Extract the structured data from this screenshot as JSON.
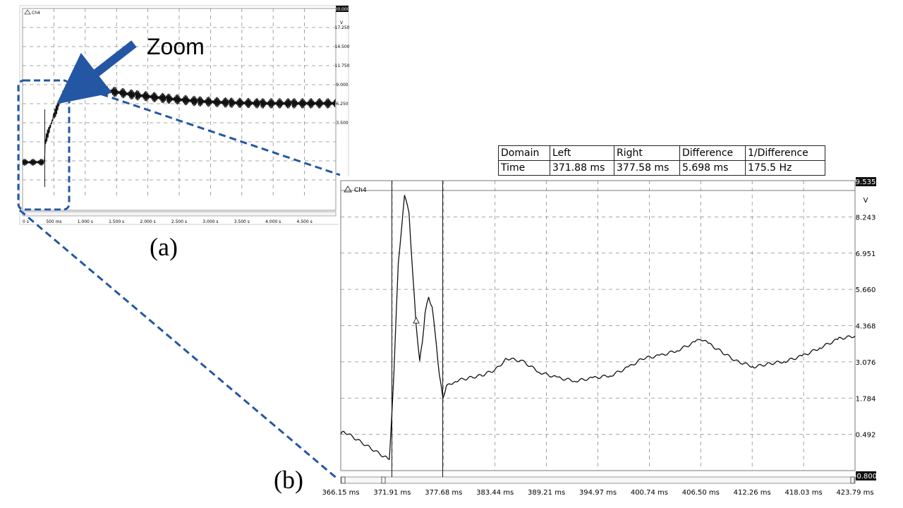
{
  "zoom_label": "Zoom",
  "panel_a_label": "(a)",
  "panel_b_label": "(b)",
  "cursor_table": {
    "headers": [
      "Domain",
      "Left",
      "Right",
      "Difference",
      "1/Difference"
    ],
    "row": [
      "Time",
      "371.88 ms",
      "377.58 ms",
      "5.698 ms",
      "175.5 Hz"
    ]
  },
  "colors": {
    "accent": "#2457a3",
    "trace": "#000000",
    "grid": "#888888"
  },
  "chart_data": [
    {
      "type": "line",
      "channel_label": "Ch4",
      "y_unit": "V",
      "y_max_label": "20.000",
      "y_ticks": [
        "17.250",
        "14.500",
        "11.750",
        "9.000",
        "6.250",
        "3.500"
      ],
      "x_ticks": [
        "0 s",
        "500 ms",
        "1.000 s",
        "1.500 s",
        "2.000 s",
        "2.500 s",
        "3.000 s",
        "3.500 s",
        "4.000 s",
        "4.500 s"
      ],
      "xlim": [
        0,
        5.0
      ],
      "ylim": [
        -7.5,
        20.0
      ],
      "grid": true,
      "series": [
        {
          "x": [
            0,
            0.35,
            0.36,
            0.5,
            0.65,
            0.9,
            1.3,
            1.8,
            2.3,
            2.8,
            3.3,
            3.8,
            4.3,
            5.0
          ],
          "y": [
            -2.2,
            -2.2,
            0.8,
            4.5,
            7.7,
            8.6,
            8.2,
            7.5,
            7.0,
            6.6,
            6.4,
            6.3,
            6.3,
            6.3
          ]
        }
      ]
    },
    {
      "type": "line",
      "channel_label": "Ch4",
      "y_unit": "V",
      "y_max_label": "9.535",
      "y_min_label": "-0.800",
      "y_ticks": [
        "8.243",
        "6.951",
        "5.660",
        "4.368",
        "3.076",
        "1.784",
        "0.492"
      ],
      "x_ticks": [
        "366.15 ms",
        "371.91 ms",
        "377.68 ms",
        "383.44 ms",
        "389.21 ms",
        "394.97 ms",
        "400.74 ms",
        "406.50 ms",
        "412.26 ms",
        "418.03 ms",
        "423.79 ms"
      ],
      "xlim": [
        366.15,
        423.79
      ],
      "ylim": [
        -0.8,
        9.535
      ],
      "grid": true,
      "cursors_ms": [
        371.88,
        377.58
      ],
      "series": [
        {
          "x": [
            366.15,
            366.5,
            368.0,
            369.5,
            371.0,
            371.6,
            372.1,
            372.6,
            373.3,
            373.8,
            374.2,
            374.6,
            375.0,
            375.3,
            375.6,
            376.0,
            376.4,
            376.9,
            377.2,
            377.6,
            378.0,
            379.0,
            380.5,
            382.0,
            383.5,
            384.8,
            386.5,
            388.5,
            390.5,
            392.5,
            394.5,
            396.5,
            398.5,
            400.0,
            402.0,
            404.0,
            406.0,
            406.5,
            407.5,
            409.0,
            410.5,
            412.5,
            414.0,
            416.0,
            418.0,
            420.0,
            422.0,
            423.79
          ],
          "y": [
            0.5,
            0.6,
            0.3,
            0.0,
            -0.3,
            -0.4,
            2.6,
            6.6,
            9.0,
            8.4,
            6.3,
            4.4,
            3.1,
            3.8,
            4.8,
            5.4,
            5.0,
            3.6,
            2.6,
            1.8,
            2.2,
            2.4,
            2.5,
            2.6,
            2.8,
            3.2,
            3.1,
            2.7,
            2.5,
            2.4,
            2.5,
            2.6,
            2.9,
            3.2,
            3.3,
            3.5,
            3.8,
            3.9,
            3.7,
            3.4,
            3.1,
            2.9,
            3.0,
            3.1,
            3.3,
            3.6,
            3.9,
            4.0
          ]
        }
      ]
    }
  ]
}
